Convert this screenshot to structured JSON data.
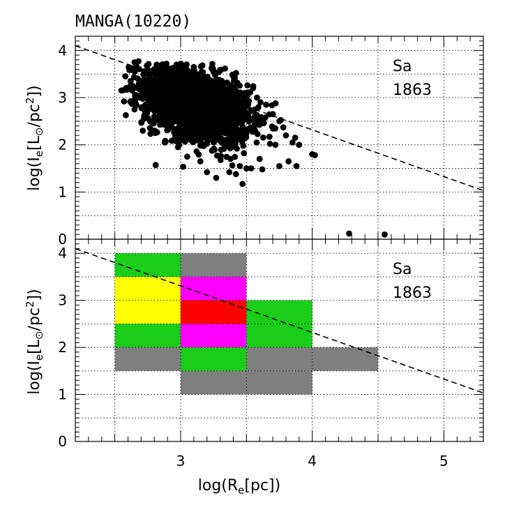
{
  "title": "MANGA(10220)",
  "x_label": {
    "base": "log(R",
    "sub": "e",
    "rest": "[pc])"
  },
  "y_label": {
    "base": "log(I",
    "sub": "e",
    "mid": "[L",
    "sun": "⊙",
    "unit": "/pc",
    "sup": "2",
    "end": "])"
  },
  "chart_data": [
    {
      "type": "scatter",
      "panel": "top",
      "morph_type": "Sa",
      "count": "1863",
      "xlim": [
        2.2,
        5.3
      ],
      "ylim": [
        0,
        4.3
      ],
      "x_ticks": [
        3,
        4,
        5
      ],
      "y_ticks": [
        0,
        1,
        2,
        3,
        4
      ],
      "grid": true,
      "dashed_line": {
        "x": [
          2.2,
          5.3
        ],
        "y": [
          4.1,
          1.03
        ]
      },
      "cloud": {
        "x_center": 3.12,
        "y_center": 2.85,
        "x_sigma": 0.2,
        "y_sigma": 0.36,
        "slope": -0.75
      },
      "points": [
        [
          2.65,
          3.75
        ],
        [
          2.68,
          3.77
        ],
        [
          2.58,
          3.45
        ],
        [
          2.62,
          3.35
        ],
        [
          2.55,
          3.15
        ],
        [
          2.6,
          3.18
        ],
        [
          2.57,
          2.92
        ],
        [
          2.65,
          2.75
        ],
        [
          2.72,
          2.55
        ],
        [
          2.8,
          2.3
        ],
        [
          2.88,
          2.05
        ],
        [
          2.98,
          1.95
        ],
        [
          3.05,
          1.75
        ],
        [
          3.15,
          1.65
        ],
        [
          3.2,
          1.42
        ],
        [
          3.27,
          1.3
        ],
        [
          3.37,
          1.42
        ],
        [
          3.42,
          1.38
        ],
        [
          3.47,
          1.17
        ],
        [
          3.5,
          1.5
        ],
        [
          3.45,
          1.55
        ],
        [
          3.6,
          1.7
        ],
        [
          3.62,
          1.48
        ],
        [
          3.75,
          1.55
        ],
        [
          3.72,
          2.0
        ],
        [
          3.82,
          1.65
        ],
        [
          3.88,
          1.55
        ],
        [
          3.8,
          2.2
        ],
        [
          3.78,
          2.37
        ],
        [
          3.85,
          2.05
        ],
        [
          3.75,
          2.5
        ],
        [
          3.7,
          2.65
        ],
        [
          3.65,
          2.85
        ],
        [
          3.58,
          3.0
        ],
        [
          3.55,
          3.2
        ],
        [
          3.4,
          3.45
        ],
        [
          3.25,
          3.55
        ],
        [
          3.1,
          3.65
        ],
        [
          2.97,
          3.7
        ],
        [
          2.85,
          3.68
        ],
        [
          3.87,
          2.15
        ],
        [
          3.9,
          2.0
        ],
        [
          4.0,
          1.8
        ],
        [
          4.02,
          1.78
        ],
        [
          4.28,
          0.12
        ],
        [
          4.55,
          0.1
        ]
      ]
    },
    {
      "type": "heatmap",
      "panel": "bottom",
      "morph_type": "Sa",
      "count": "1863",
      "xlim": [
        2.2,
        5.3
      ],
      "ylim": [
        0,
        4.3
      ],
      "x_ticks": [
        3,
        4,
        5
      ],
      "y_ticks": [
        0,
        1,
        2,
        3,
        4
      ],
      "grid": true,
      "dashed_line": {
        "x": [
          2.2,
          5.3
        ],
        "y": [
          4.1,
          1.03
        ]
      },
      "cell_size": 0.5,
      "legend_colors": {
        "gray": "#808080",
        "green": "#19cd19",
        "yellow": "#ffff00",
        "magenta": "#ff00ff",
        "red": "#ff0000"
      },
      "cells": [
        {
          "x": 2.5,
          "y": 3.5,
          "color": "#19cd19"
        },
        {
          "x": 3.0,
          "y": 3.5,
          "color": "#808080"
        },
        {
          "x": 2.5,
          "y": 2.5,
          "color": "#ffff00"
        },
        {
          "x": 2.5,
          "y": 3.0,
          "color": "#ffff00"
        },
        {
          "x": 3.0,
          "y": 3.0,
          "color": "#ff00ff"
        },
        {
          "x": 3.0,
          "y": 2.5,
          "color": "#ff0000"
        },
        {
          "x": 3.5,
          "y": 2.5,
          "color": "#19cd19"
        },
        {
          "x": 2.5,
          "y": 2.0,
          "color": "#19cd19"
        },
        {
          "x": 3.0,
          "y": 2.0,
          "color": "#ff00ff"
        },
        {
          "x": 3.5,
          "y": 2.0,
          "color": "#19cd19"
        },
        {
          "x": 2.5,
          "y": 1.5,
          "color": "#808080"
        },
        {
          "x": 3.0,
          "y": 1.5,
          "color": "#19cd19"
        },
        {
          "x": 3.5,
          "y": 1.5,
          "color": "#808080"
        },
        {
          "x": 4.0,
          "y": 1.5,
          "color": "#808080"
        },
        {
          "x": 3.0,
          "y": 1.0,
          "color": "#808080"
        },
        {
          "x": 3.5,
          "y": 1.0,
          "color": "#808080"
        }
      ]
    }
  ]
}
